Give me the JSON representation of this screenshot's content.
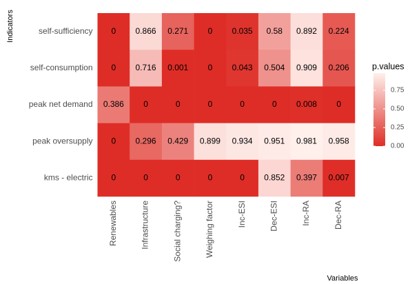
{
  "chart_data": {
    "type": "heatmap",
    "x_label": "Variables",
    "y_label": "Indicators",
    "x_categories": [
      "Renewables",
      "Infrastructure",
      "Social charging?",
      "Weighing factor",
      "Inc-ESI",
      "Dec-ESI",
      "Inc-RA",
      "Dec-RA"
    ],
    "y_categories": [
      "self-sufficiency",
      "self-consumption",
      "peak net demand",
      "peak oversupply",
      "kms - electric"
    ],
    "values": [
      [
        0,
        0.866,
        0.271,
        0,
        0.035,
        0.58,
        0.892,
        0.224
      ],
      [
        0,
        0.716,
        0.001,
        0,
        0.043,
        0.504,
        0.909,
        0.206
      ],
      [
        0.386,
        0,
        0,
        0,
        0,
        0,
        0.008,
        0
      ],
      [
        0,
        0.296,
        0.429,
        0.899,
        0.934,
        0.951,
        0.981,
        0.958
      ],
      [
        0,
        0,
        0,
        0,
        0,
        0.852,
        0.397,
        0.007
      ]
    ],
    "legend_title": "p.values",
    "zlim": [
      0,
      0.981
    ],
    "zticks": [
      {
        "value": 0,
        "label": "0.00"
      },
      {
        "value": 0.25,
        "label": "0.25"
      },
      {
        "value": 0.5,
        "label": "0.50"
      },
      {
        "value": 0.75,
        "label": "0.75"
      }
    ],
    "low_color": "#de2d26",
    "high_color": "#fff0ec"
  }
}
